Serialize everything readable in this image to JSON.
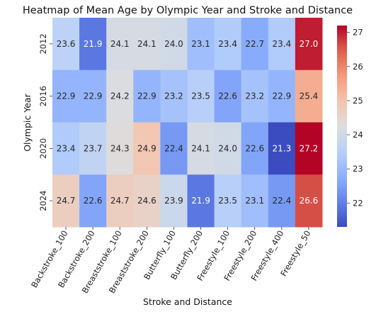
{
  "chart_data": {
    "type": "heatmap",
    "title": "Heatmap of Mean Age by Olympic Year and Stroke and Distance",
    "xlabel": "Stroke and Distance",
    "ylabel": "Olympic Year",
    "x_categories": [
      "Backstroke_100",
      "Backstroke_200",
      "Breaststroke_100",
      "Breaststroke_200",
      "Butterfly_100",
      "Butterfly_200",
      "Freestyle_100",
      "Freestyle_200",
      "Freestyle_400",
      "Freestyle_50"
    ],
    "y_categories": [
      "2012",
      "2016",
      "2020",
      "2024"
    ],
    "values": [
      [
        23.6,
        21.9,
        24.1,
        24.1,
        24.0,
        23.1,
        23.4,
        22.7,
        23.4,
        27.0
      ],
      [
        22.9,
        22.9,
        24.2,
        22.9,
        23.2,
        23.5,
        22.6,
        23.2,
        22.9,
        25.4
      ],
      [
        23.4,
        23.7,
        24.3,
        24.9,
        22.4,
        24.1,
        24.0,
        22.6,
        21.3,
        27.2
      ],
      [
        24.7,
        22.6,
        24.7,
        24.6,
        23.9,
        21.9,
        23.5,
        23.1,
        22.4,
        26.6
      ]
    ],
    "colormap": "coolwarm",
    "vmin": 21.3,
    "vmax": 27.2,
    "colorbar_ticks": [
      22,
      23,
      24,
      25,
      26,
      27
    ]
  }
}
